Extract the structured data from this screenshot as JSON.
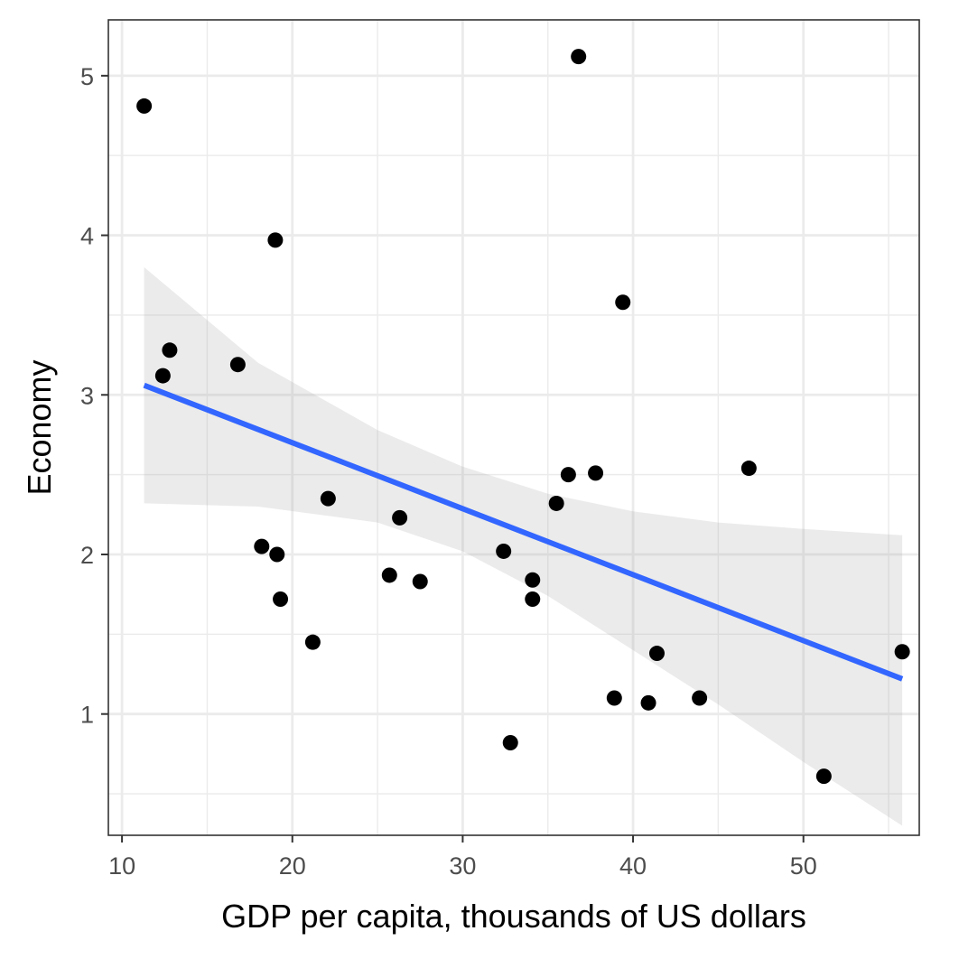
{
  "chart_data": {
    "type": "scatter",
    "title": "",
    "xlabel": "GDP per capita, thousands of US dollars",
    "ylabel": "Economy",
    "xlim": [
      9.2,
      56.8
    ],
    "ylim": [
      0.24,
      5.35
    ],
    "x_ticks": [
      10,
      20,
      30,
      40,
      50
    ],
    "x_tick_labels": [
      "10",
      "20",
      "30",
      "40",
      "50"
    ],
    "x_minor_ticks": [
      15,
      25,
      35,
      45,
      55
    ],
    "y_ticks": [
      1,
      2,
      3,
      4,
      5
    ],
    "y_tick_labels": [
      "1",
      "2",
      "3",
      "4",
      "5"
    ],
    "y_minor_ticks": [
      0.5,
      1.5,
      2.5,
      3.5,
      4.5
    ],
    "grid": true,
    "legend": "none",
    "points": [
      {
        "x": 11.3,
        "y": 4.81
      },
      {
        "x": 12.4,
        "y": 3.12
      },
      {
        "x": 12.8,
        "y": 3.28
      },
      {
        "x": 16.8,
        "y": 3.19
      },
      {
        "x": 18.2,
        "y": 2.05
      },
      {
        "x": 19.0,
        "y": 3.97
      },
      {
        "x": 19.1,
        "y": 2.0
      },
      {
        "x": 19.3,
        "y": 1.72
      },
      {
        "x": 21.2,
        "y": 1.45
      },
      {
        "x": 22.1,
        "y": 2.35
      },
      {
        "x": 25.7,
        "y": 1.87
      },
      {
        "x": 26.3,
        "y": 2.23
      },
      {
        "x": 27.5,
        "y": 1.83
      },
      {
        "x": 32.4,
        "y": 2.02
      },
      {
        "x": 32.8,
        "y": 0.82
      },
      {
        "x": 34.1,
        "y": 1.84
      },
      {
        "x": 34.1,
        "y": 1.72
      },
      {
        "x": 35.5,
        "y": 2.32
      },
      {
        "x": 36.2,
        "y": 2.5
      },
      {
        "x": 36.8,
        "y": 5.12
      },
      {
        "x": 37.8,
        "y": 2.51
      },
      {
        "x": 38.9,
        "y": 1.1
      },
      {
        "x": 39.4,
        "y": 3.58
      },
      {
        "x": 40.9,
        "y": 1.07
      },
      {
        "x": 41.4,
        "y": 1.38
      },
      {
        "x": 43.9,
        "y": 1.1
      },
      {
        "x": 46.8,
        "y": 2.54
      },
      {
        "x": 51.2,
        "y": 0.61
      },
      {
        "x": 55.8,
        "y": 1.39
      }
    ],
    "trend_line": {
      "x": [
        11.3,
        55.8
      ],
      "y": [
        3.06,
        1.22
      ]
    },
    "confidence_band": {
      "x": [
        11.3,
        18.0,
        25.0,
        30.0,
        35.0,
        40.0,
        45.0,
        50.0,
        55.8
      ],
      "lower": [
        2.32,
        2.3,
        2.2,
        2.02,
        1.74,
        1.4,
        1.06,
        0.7,
        0.3
      ],
      "upper": [
        3.8,
        3.2,
        2.78,
        2.55,
        2.38,
        2.27,
        2.2,
        2.16,
        2.12
      ]
    },
    "colors": {
      "points": "#000000",
      "trend_line": "#3366ff",
      "confidence_band": "#ebebeb",
      "grid": "#ebebeb",
      "panel_border": "#333333",
      "tick_label": "#4d4d4d",
      "axis_title": "#000000"
    }
  }
}
